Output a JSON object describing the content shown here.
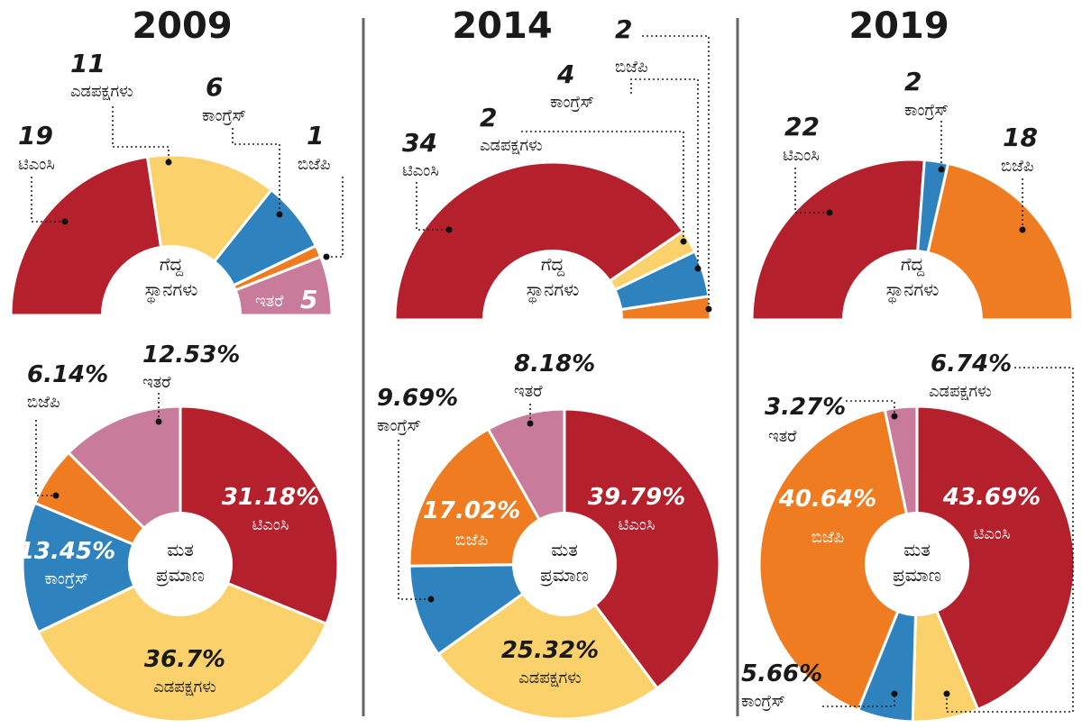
{
  "colors": {
    "tmc": "#b5202d",
    "left": "#fbd16b",
    "congress": "#2e83bf",
    "bjp": "#f07c21",
    "others": "#c87b9b"
  },
  "charts": [
    {
      "year": "2009",
      "seats_hub": [
        "ಗೆದ್ದ",
        "ಸ್ಥಾನಗಳು"
      ],
      "votes_hub": [
        "ಮತ",
        "ಪ್ರಮಾಣ"
      ],
      "seats": [
        {
          "num": "19",
          "name": "ಟಿಎಂಸಿ"
        },
        {
          "num": "11",
          "name": "ಎಡಪಕ್ಷಗಳು"
        },
        {
          "num": "6",
          "name": "ಕಾಂಗ್ರೆಸ್"
        },
        {
          "num": "1",
          "name": "ಬಿಜೆಪಿ"
        },
        {
          "num": "5",
          "name": "ಇತರೆ"
        }
      ],
      "votes": [
        {
          "pct": "31.18%",
          "name": "ಟಿಎಂಸಿ"
        },
        {
          "pct": "36.7%",
          "name": "ಎಡಪಕ್ಷಗಳು"
        },
        {
          "pct": "13.45%",
          "name": "ಕಾಂಗ್ರೆಸ್"
        },
        {
          "pct": "6.14%",
          "name": "ಬಿಜೆಪಿ"
        },
        {
          "pct": "12.53%",
          "name": "ಇತರೆ"
        }
      ]
    },
    {
      "year": "2014",
      "seats_hub": [
        "ಗೆದ್ದ",
        "ಸ್ಥಾನಗಳು"
      ],
      "votes_hub": [
        "ಮತ",
        "ಪ್ರಮಾಣ"
      ],
      "seats": [
        {
          "num": "34",
          "name": "ಟಿಎಂಸಿ"
        },
        {
          "num": "2",
          "name": "ಎಡಪಕ್ಷಗಳು"
        },
        {
          "num": "4",
          "name": "ಕಾಂಗ್ರೆಸ್"
        },
        {
          "num": "2",
          "name": "ಬಿಜೆಪಿ"
        }
      ],
      "votes": [
        {
          "pct": "39.79%",
          "name": "ಟಿಎಂಸಿ"
        },
        {
          "pct": "25.32%",
          "name": "ಎಡಪಕ್ಷಗಳು"
        },
        {
          "pct": "9.69%",
          "name": "ಕಾಂಗ್ರೆಸ್"
        },
        {
          "pct": "17.02%",
          "name": "ಬಿಜೆಪಿ"
        },
        {
          "pct": "8.18%",
          "name": "ಇತರೆ"
        }
      ]
    },
    {
      "year": "2019",
      "seats_hub": [
        "ಗೆದ್ದ",
        "ಸ್ಥಾನಗಳು"
      ],
      "votes_hub": [
        "ಮತ",
        "ಪ್ರಮಾಣ"
      ],
      "seats": [
        {
          "num": "22",
          "name": "ಟಿಎಂಸಿ"
        },
        {
          "num": "2",
          "name": "ಕಾಂಗ್ರೆಸ್"
        },
        {
          "num": "18",
          "name": "ಬಿಜೆಪಿ"
        }
      ],
      "votes": [
        {
          "pct": "43.69%",
          "name": "ಟಿಎಂಸಿ"
        },
        {
          "pct": "6.74%",
          "name": "ಎಡಪಕ್ಷಗಳು"
        },
        {
          "pct": "5.66%",
          "name": "ಕಾಂಗ್ರೆಸ್"
        },
        {
          "pct": "40.64%",
          "name": "ಬಿಜೆಪಿ"
        },
        {
          "pct": "3.27%",
          "name": "ಇತರೆ"
        }
      ]
    }
  ],
  "chart_data": [
    {
      "type": "pie",
      "year": "2009",
      "variant": "semicircle-donut",
      "categories": [
        "ಟಿಎಂಸಿ",
        "ಎಡಪಕ್ಷಗಳು",
        "ಕಾಂಗ್ರೆಸ್",
        "ಬಿಜೆಪಿ",
        "ಇತರೆ"
      ],
      "keys": [
        "tmc",
        "left",
        "congress",
        "bjp",
        "others"
      ],
      "values": [
        19,
        11,
        6,
        1,
        5
      ]
    },
    {
      "type": "pie",
      "year": "2014",
      "variant": "semicircle-donut",
      "categories": [
        "ಟಿಎಂಸಿ",
        "ಎಡಪಕ್ಷಗಳು",
        "ಕಾಂಗ್ರೆಸ್",
        "ಬಿಜೆಪಿ"
      ],
      "keys": [
        "tmc",
        "left",
        "congress",
        "bjp"
      ],
      "values": [
        34,
        2,
        4,
        2
      ]
    },
    {
      "type": "pie",
      "year": "2019",
      "variant": "semicircle-donut",
      "categories": [
        "ಟಿಎಂಸಿ",
        "ಕಾಂಗ್ರೆಸ್",
        "ಬಿಜೆಪಿ"
      ],
      "keys": [
        "tmc",
        "congress",
        "bjp"
      ],
      "values": [
        22,
        2,
        18
      ]
    },
    {
      "type": "pie",
      "year": "2009",
      "variant": "donut",
      "categories": [
        "ಟಿಎಂಸಿ",
        "ಎಡಪಕ್ಷಗಳು",
        "ಕಾಂಗ್ರೆಸ್",
        "ಬಿಜೆಪಿ",
        "ಇತರೆ"
      ],
      "keys": [
        "tmc",
        "left",
        "congress",
        "bjp",
        "others"
      ],
      "values": [
        31.18,
        36.7,
        13.45,
        6.14,
        12.53
      ]
    },
    {
      "type": "pie",
      "year": "2014",
      "variant": "donut",
      "categories": [
        "ಟಿಎಂಸಿ",
        "ಎಡಪಕ್ಷಗಳು",
        "ಕಾಂಗ್ರೆಸ್",
        "ಬಿಜೆಪಿ",
        "ಇತರೆ"
      ],
      "keys": [
        "tmc",
        "left",
        "congress",
        "bjp",
        "others"
      ],
      "values": [
        39.79,
        25.32,
        9.69,
        17.02,
        8.18
      ]
    },
    {
      "type": "pie",
      "year": "2019",
      "variant": "donut",
      "categories": [
        "ಟಿಎಂಸಿ",
        "ಎಡಪಕ್ಷಗಳು",
        "ಕಾಂಗ್ರೆಸ್",
        "ಬಿಜೆಪಿ",
        "ಇತರೆ"
      ],
      "keys": [
        "tmc",
        "left",
        "congress",
        "bjp",
        "others"
      ],
      "values": [
        43.69,
        6.74,
        5.66,
        40.64,
        3.27
      ]
    }
  ]
}
